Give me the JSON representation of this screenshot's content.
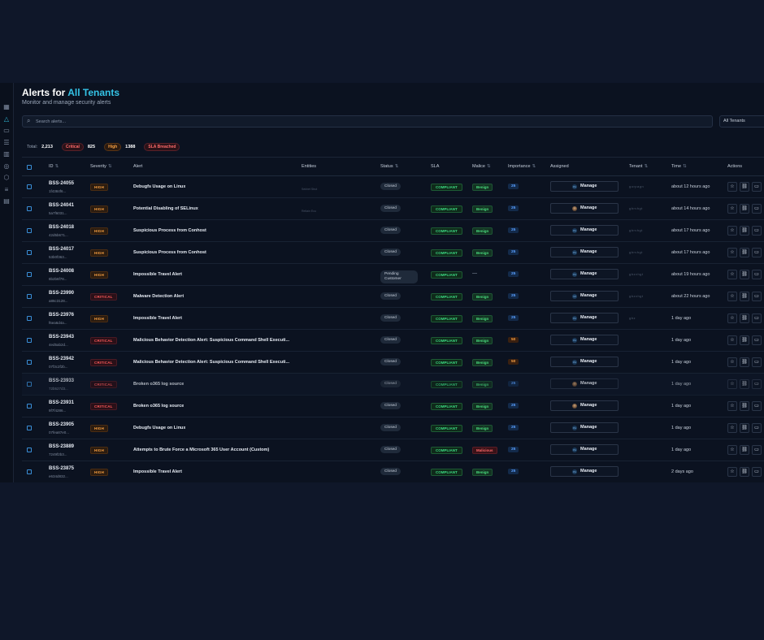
{
  "header": {
    "title_prefix": "Alerts for",
    "title_accent": "All Tenants",
    "subtitle": "Monitor and manage security alerts"
  },
  "search": {
    "placeholder": "Search alerts..."
  },
  "tenant_filter": {
    "selected": "All Tenants"
  },
  "stats": {
    "total_label": "Total:",
    "total": "2,213",
    "critical_label": "Critical",
    "critical": "825",
    "high_label": "High",
    "high": "1388",
    "sla_label": "SLA Breached"
  },
  "columns": {
    "id": "ID",
    "severity": "Severity",
    "alert": "Alert",
    "entities": "Entities",
    "status": "Status",
    "sla": "SLA",
    "malice": "Malice",
    "importance": "Importance",
    "assigned": "Assigned",
    "tenant": "Tenant",
    "time": "Time",
    "actions": "Actions"
  },
  "icons": {
    "sidebar": [
      "grid-icon",
      "alert-icon",
      "book-icon",
      "server-icon",
      "chart-icon",
      "globe-icon",
      "shield-icon",
      "sliders-icon",
      "file-icon"
    ],
    "actions": [
      "star-icon",
      "link-icon",
      "comment-icon"
    ]
  },
  "rows": [
    {
      "id": "BSS-24055",
      "sub": "1f4384f6...",
      "severity": "HIGH",
      "alert": "Debugfs Usage on Linux",
      "entity": "Sekhet Strut",
      "status": "Closed",
      "sla": "COMPLIANT",
      "malice": "Benign",
      "importance": "25",
      "assigned": "Manage",
      "avatar": "PA",
      "tenant": "gorpagn",
      "time": "about 12 hours ago"
    },
    {
      "id": "BSS-24041",
      "sub": "5a7f6031...",
      "severity": "HIGH",
      "alert": "Potential Disabling of SELinux",
      "entity": "Reltain Ecu",
      "status": "Closed",
      "sla": "COMPLIANT",
      "malice": "Benign",
      "importance": "25",
      "assigned": "Manage",
      "avatar": "photo",
      "tenant": "gbrvhgt",
      "time": "about 14 hours ago"
    },
    {
      "id": "BSS-24018",
      "sub": "42d5b671...",
      "severity": "HIGH",
      "alert": "Suspicious Process from Conhost",
      "entity": "",
      "status": "Closed",
      "sla": "COMPLIANT",
      "malice": "Benign",
      "importance": "25",
      "assigned": "Manage",
      "avatar": "PA",
      "tenant": "gbrvhgt",
      "time": "about 17 hours ago"
    },
    {
      "id": "BSS-24017",
      "sub": "53b0f363...",
      "severity": "HIGH",
      "alert": "Suspicious Process from Conhost",
      "entity": "",
      "status": "Closed",
      "sla": "COMPLIANT",
      "malice": "Benign",
      "importance": "25",
      "assigned": "Manage",
      "avatar": "PA",
      "tenant": "gbrvhgt",
      "time": "about 17 hours ago"
    },
    {
      "id": "BSS-24008",
      "sub": "8b2b6f78...",
      "severity": "HIGH",
      "alert": "Impossible Travel Alert",
      "entity": "",
      "status": "Pending Customer",
      "sla": "COMPLIANT",
      "malice": "—",
      "importance": "25",
      "assigned": "Manage",
      "avatar": "PA",
      "tenant": "gbzvhgt",
      "time": "about 19 hours ago"
    },
    {
      "id": "BSS-23990",
      "sub": "a86c3128...",
      "severity": "CRITICAL",
      "alert": "Malware Detection Alert",
      "entity": "",
      "status": "Closed",
      "sla": "COMPLIANT",
      "malice": "Benign",
      "importance": "25",
      "assigned": "Manage",
      "avatar": "MI",
      "tenant": "gbzvhgt",
      "time": "about 22 hours ago"
    },
    {
      "id": "BSS-23976",
      "sub": "f6ea6d4a...",
      "severity": "HIGH",
      "alert": "Impossible Travel Alert",
      "entity": "",
      "status": "Closed",
      "sla": "COMPLIANT",
      "malice": "Benign",
      "importance": "25",
      "assigned": "Manage",
      "avatar": "PA",
      "tenant": "gbz",
      "time": "1 day ago"
    },
    {
      "id": "BSS-23943",
      "sub": "4ed5ab2d...",
      "severity": "CRITICAL",
      "alert": "Malicious Behavior Detection Alert: Suspicious Command Shell Executi...",
      "entity": "",
      "status": "Closed",
      "sla": "COMPLIANT",
      "malice": "Benign",
      "importance": "50",
      "assigned": "Manage",
      "avatar": "PA",
      "tenant": "",
      "time": "1 day ago"
    },
    {
      "id": "BSS-23942",
      "sub": "07f3c2f2b...",
      "severity": "CRITICAL",
      "alert": "Malicious Behavior Detection Alert: Suspicious Command Shell Executi...",
      "entity": "",
      "status": "Closed",
      "sla": "COMPLIANT",
      "malice": "Benign",
      "importance": "50",
      "assigned": "Manage",
      "avatar": "PA",
      "tenant": "",
      "time": "1 day ago"
    },
    {
      "id": "BSS-23933",
      "sub": "72b527d3...",
      "severity": "CRITICAL",
      "alert": "Broken o365 log source",
      "entity": "",
      "status": "Closed",
      "sla": "COMPLIANT",
      "malice": "Benign",
      "importance": "25",
      "assigned": "Manage",
      "avatar": "photo",
      "tenant": "",
      "time": "1 day ago",
      "dim": true
    },
    {
      "id": "BSS-23931",
      "sub": "9f7f4286...",
      "severity": "CRITICAL",
      "alert": "Broken o365 log source",
      "entity": "",
      "status": "Closed",
      "sla": "COMPLIANT",
      "malice": "Benign",
      "importance": "25",
      "assigned": "Manage",
      "avatar": "photo",
      "tenant": "",
      "time": "1 day ago"
    },
    {
      "id": "BSS-23905",
      "sub": "07fea87e0...",
      "severity": "HIGH",
      "alert": "Debugfs Usage on Linux",
      "entity": "",
      "status": "Closed",
      "sla": "COMPLIANT",
      "malice": "Benign",
      "importance": "25",
      "assigned": "Manage",
      "avatar": "PA",
      "tenant": "",
      "time": "1 day ago"
    },
    {
      "id": "BSS-23889",
      "sub": "7249f2b3...",
      "severity": "HIGH",
      "alert": "Attempts to Brute Force a Microsoft 365 User Account (Custom)",
      "entity": "",
      "status": "Closed",
      "sla": "COMPLIANT",
      "malice": "Malicious",
      "importance": "25",
      "assigned": "Manage",
      "avatar": "PA",
      "tenant": "",
      "time": "1 day ago"
    },
    {
      "id": "BSS-23875",
      "sub": "e634d832...",
      "severity": "HIGH",
      "alert": "Impossible Travel Alert",
      "entity": "",
      "status": "Closed",
      "sla": "COMPLIANT",
      "malice": "Benign",
      "importance": "25",
      "assigned": "Manage",
      "avatar": "PA",
      "tenant": "",
      "time": "2 days ago"
    }
  ]
}
